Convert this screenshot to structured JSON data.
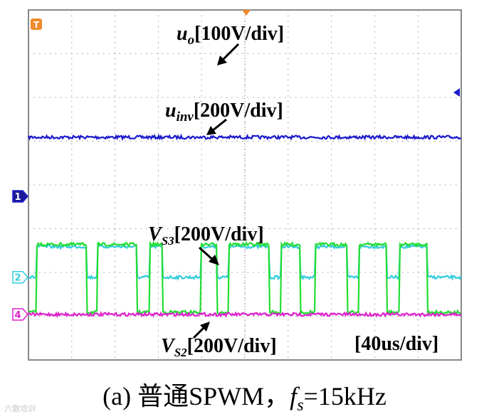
{
  "chart_data": {
    "type": "line",
    "x_unit": "us",
    "time_div_label": "[40us/div]",
    "grid": true,
    "x_range_us": [
      0,
      400
    ],
    "series": [
      {
        "name": "u_o",
        "label_main": "u",
        "label_sub": "o",
        "label_scale": "[100V/div]",
        "color": "#1a1acc",
        "marker": "1",
        "kind": "dc",
        "level_div": 4.05,
        "ground_div": 2.7
      },
      {
        "name": "u_inv",
        "label_main": "u",
        "label_sub": "inv",
        "label_scale": "[200V/div]",
        "color": "#33ccdd",
        "marker": "2",
        "kind": "pulses",
        "ground_div": 0.85,
        "high_div": 1.55,
        "pulses_us": [
          [
            12,
            86
          ],
          [
            102,
            160
          ],
          [
            180,
            198
          ],
          [
            255,
            278
          ],
          [
            296,
            356
          ],
          [
            374,
            402
          ],
          [
            424,
            472
          ],
          [
            488,
            530
          ],
          [
            548,
            590
          ]
        ]
      },
      {
        "name": "V_S3",
        "label_main": "V",
        "label_sub": "S3",
        "label_scale": "[200V/div]",
        "color": "#22dd33",
        "marker": "",
        "kind": "pulses",
        "ground_div": 0.05,
        "high_div": 1.6,
        "pulses_us": [
          [
            12,
            86
          ],
          [
            102,
            160
          ],
          [
            180,
            198
          ],
          [
            255,
            278
          ],
          [
            296,
            356
          ],
          [
            374,
            402
          ],
          [
            424,
            472
          ],
          [
            488,
            530
          ],
          [
            548,
            590
          ]
        ]
      },
      {
        "name": "V_S2",
        "label_main": "V",
        "label_sub": "S2",
        "label_scale": "[200V/div]",
        "color": "#dd22cc",
        "marker": "4",
        "kind": "dc",
        "level_div": 0.0,
        "ground_div": 0.0
      }
    ],
    "top_marker": "T",
    "caption_prefix": "(a)  普通SPWM，",
    "caption_f": "f",
    "caption_sub": "s",
    "caption_suffix": "=15kHz"
  },
  "watermark": "六散培训"
}
